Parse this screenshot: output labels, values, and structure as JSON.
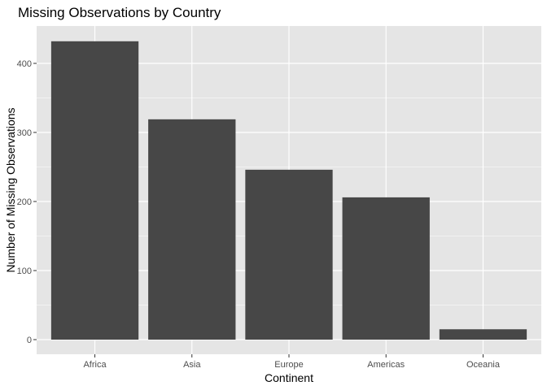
{
  "chart_data": {
    "type": "bar",
    "title": "Missing Observations by Country",
    "xlabel": "Continent",
    "ylabel": "Number of Missing Observations",
    "categories": [
      "Africa",
      "Asia",
      "Europe",
      "Americas",
      "Oceania"
    ],
    "values": [
      432,
      319,
      246,
      206,
      15
    ],
    "ylim": [
      0,
      455
    ],
    "yticks": [
      0,
      100,
      200,
      300,
      400
    ],
    "grid": true,
    "legend": "none",
    "colors": {
      "panel": "#e5e5e5",
      "grid": "#ffffff",
      "bar": "#474747",
      "tick": "#333333"
    }
  }
}
